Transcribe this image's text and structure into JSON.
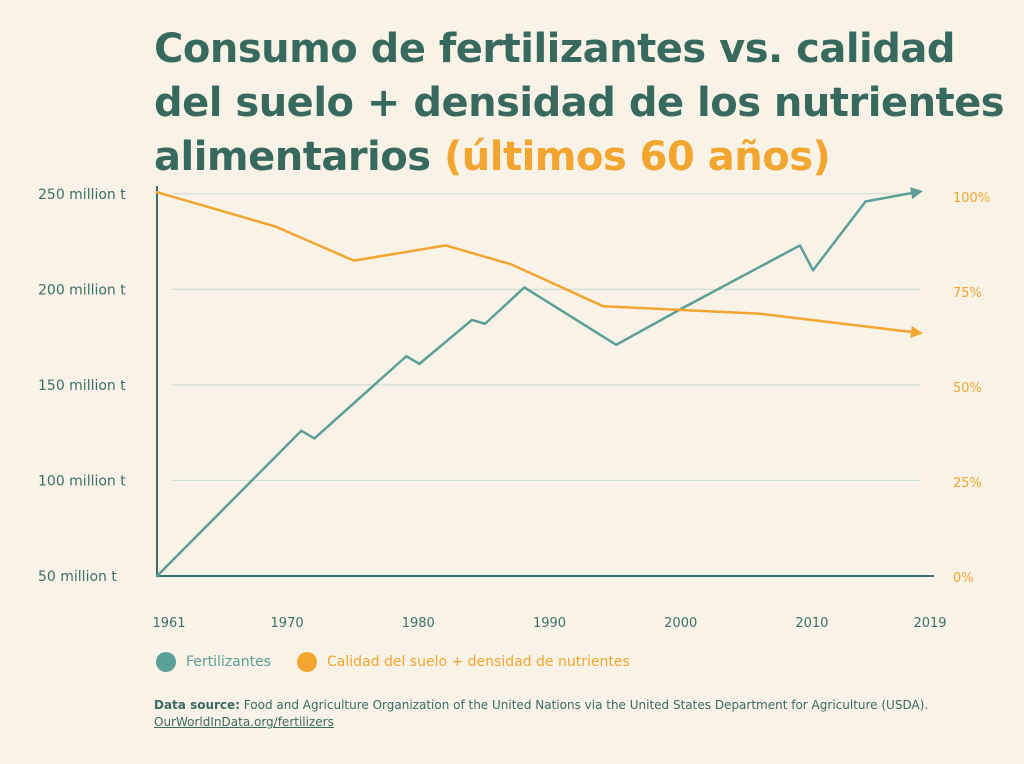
{
  "header": {
    "title_main": "Consumo de fertilizantes vs. calidad del suelo + densidad de los nutrientes alimentarios",
    "title_accent": "(últimos 60 años)"
  },
  "colors": {
    "fert": "#5c9e98",
    "soil": "#f2a630",
    "axis": "#3d7068",
    "grid": "#cfe0d6",
    "title": "#37695f"
  },
  "chart_data": {
    "type": "line",
    "title": "Consumo de fertilizantes vs. calidad del suelo + densidad de los nutrientes alimentarios (últimos 60 años)",
    "xlim": [
      1961,
      2019
    ],
    "x_ticks": [
      1961,
      1970,
      1980,
      1990,
      2000,
      2010,
      2019
    ],
    "y_left": {
      "ticks": [
        50,
        100,
        150,
        200,
        250
      ],
      "tick_labels": [
        "50 million t",
        "100 million t",
        "150 million t",
        "200 million t",
        "250 million t"
      ],
      "ylim": [
        50,
        252
      ]
    },
    "y_right": {
      "ticks": [
        0,
        25,
        50,
        75,
        100
      ],
      "tick_labels": [
        "0%",
        "25%",
        "50%",
        "75%",
        "100%"
      ],
      "ylim": [
        0,
        100
      ]
    },
    "grid": true,
    "series": [
      {
        "name": "Fertilizantes",
        "axis": "left",
        "points": [
          [
            1961,
            50
          ],
          [
            1972,
            126
          ],
          [
            1973,
            122
          ],
          [
            1980,
            165
          ],
          [
            1981,
            161
          ],
          [
            1985,
            184
          ],
          [
            1986,
            182
          ],
          [
            1989,
            201
          ],
          [
            1996,
            171
          ],
          [
            2001,
            190
          ],
          [
            2010,
            223
          ],
          [
            2011,
            210
          ],
          [
            2015,
            246
          ],
          [
            2019,
            251
          ]
        ]
      },
      {
        "name": "Calidad del suelo + densidad de nutrientes",
        "axis": "right",
        "points": [
          [
            1961,
            101
          ],
          [
            1970,
            92
          ],
          [
            1976,
            83
          ],
          [
            1983,
            87
          ],
          [
            1988,
            82
          ],
          [
            1995,
            71
          ],
          [
            2007,
            69
          ],
          [
            2019,
            64
          ]
        ]
      }
    ]
  },
  "legend": {
    "items": [
      {
        "label": "Fertilizantes",
        "color": "#5c9e98"
      },
      {
        "label": "Calidad del suelo + densidad de nutrientes",
        "color": "#f2a630"
      }
    ]
  },
  "source": {
    "label": "Data source:",
    "text": "Food and Agriculture Organization of the United Nations via the United States Department for Agriculture (USDA).",
    "link": "OurWorldInData.org/fertilizers"
  }
}
